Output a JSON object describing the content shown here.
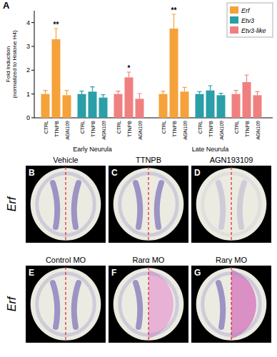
{
  "chart_data": {
    "type": "bar",
    "panel": "A",
    "y_label": "Fold Induction (normalized to Histone H4)",
    "categories": [
      "CTRL",
      "TTNPB",
      "AGN109"
    ],
    "groups": [
      "Early Neurula",
      "Late Neurula"
    ],
    "ylim": [
      0,
      4.5
    ],
    "yticks": [
      0,
      1,
      2,
      3,
      4
    ],
    "legend": "top-right",
    "series": [
      {
        "name": "Erf",
        "color": "#f5a23a",
        "values": [
          [
            1,
            3.3,
            0.95
          ],
          [
            1,
            3.75,
            1.1
          ]
        ],
        "errors": [
          [
            0.15,
            0.45,
            0.2
          ],
          [
            0.12,
            0.6,
            0.18
          ]
        ],
        "annotations": [
          [
            null,
            "**",
            null
          ],
          [
            null,
            "**",
            null
          ]
        ]
      },
      {
        "name": "Etv3",
        "color": "#2a9fa8",
        "values": [
          [
            1,
            1.1,
            0.85
          ],
          [
            1,
            1.15,
            0.95
          ]
        ],
        "errors": [
          [
            0.12,
            0.2,
            0.12
          ],
          [
            0.1,
            0.2,
            0.08
          ]
        ],
        "annotations": [
          [
            null,
            null,
            null
          ],
          [
            null,
            null,
            null
          ]
        ]
      },
      {
        "name": "Etv3-like",
        "color": "#f08080",
        "values": [
          [
            1,
            1.7,
            0.8
          ],
          [
            1,
            1.5,
            0.95
          ]
        ],
        "errors": [
          [
            0.12,
            0.22,
            0.22
          ],
          [
            0.15,
            0.3,
            0.15
          ]
        ],
        "annotations": [
          [
            null,
            "*",
            null
          ],
          [
            null,
            null,
            null
          ]
        ]
      }
    ]
  },
  "images": {
    "gene": "Erf",
    "panels": [
      {
        "letter": "B",
        "title": "Vehicle"
      },
      {
        "letter": "C",
        "title": "TTNPB"
      },
      {
        "letter": "D",
        "title": "AGN193109"
      },
      {
        "letter": "E",
        "title": "Control MO"
      },
      {
        "letter": "F",
        "title": "Rarα MO"
      },
      {
        "letter": "G",
        "title": "Rarγ MO"
      }
    ]
  }
}
